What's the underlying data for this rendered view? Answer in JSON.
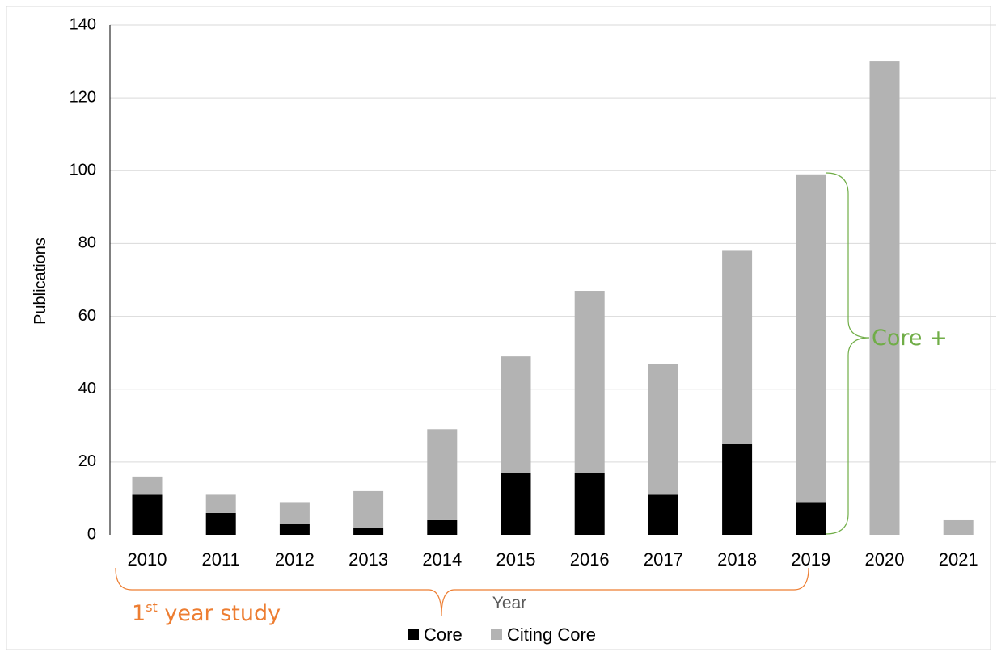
{
  "chart_data": {
    "type": "bar",
    "stacked": true,
    "title": "",
    "xlabel": "Year",
    "ylabel": "Publications",
    "ylim": [
      0,
      140
    ],
    "yticks": [
      0,
      20,
      40,
      60,
      80,
      100,
      120,
      140
    ],
    "categories": [
      "2010",
      "2011",
      "2012",
      "2013",
      "2014",
      "2015",
      "2016",
      "2017",
      "2018",
      "2019",
      "2020",
      "2021"
    ],
    "series": [
      {
        "name": "Core",
        "color": "#000000",
        "values": [
          11,
          6,
          3,
          2,
          4,
          17,
          17,
          11,
          25,
          9,
          0,
          0
        ]
      },
      {
        "name": "Citing Core",
        "color": "#b3b3b3",
        "values": [
          5,
          5,
          6,
          10,
          25,
          32,
          50,
          36,
          53,
          90,
          130,
          4
        ]
      }
    ],
    "grid": true,
    "legend_position": "bottom",
    "annotations": {
      "first_year": {
        "base": "1",
        "sup": "st",
        "rest": " year study",
        "color": "#ed7d31",
        "span": [
          "2010",
          "2019"
        ]
      },
      "core_plus": {
        "text": "Core +",
        "color": "#70ad47",
        "span": [
          0,
          99
        ]
      }
    }
  }
}
